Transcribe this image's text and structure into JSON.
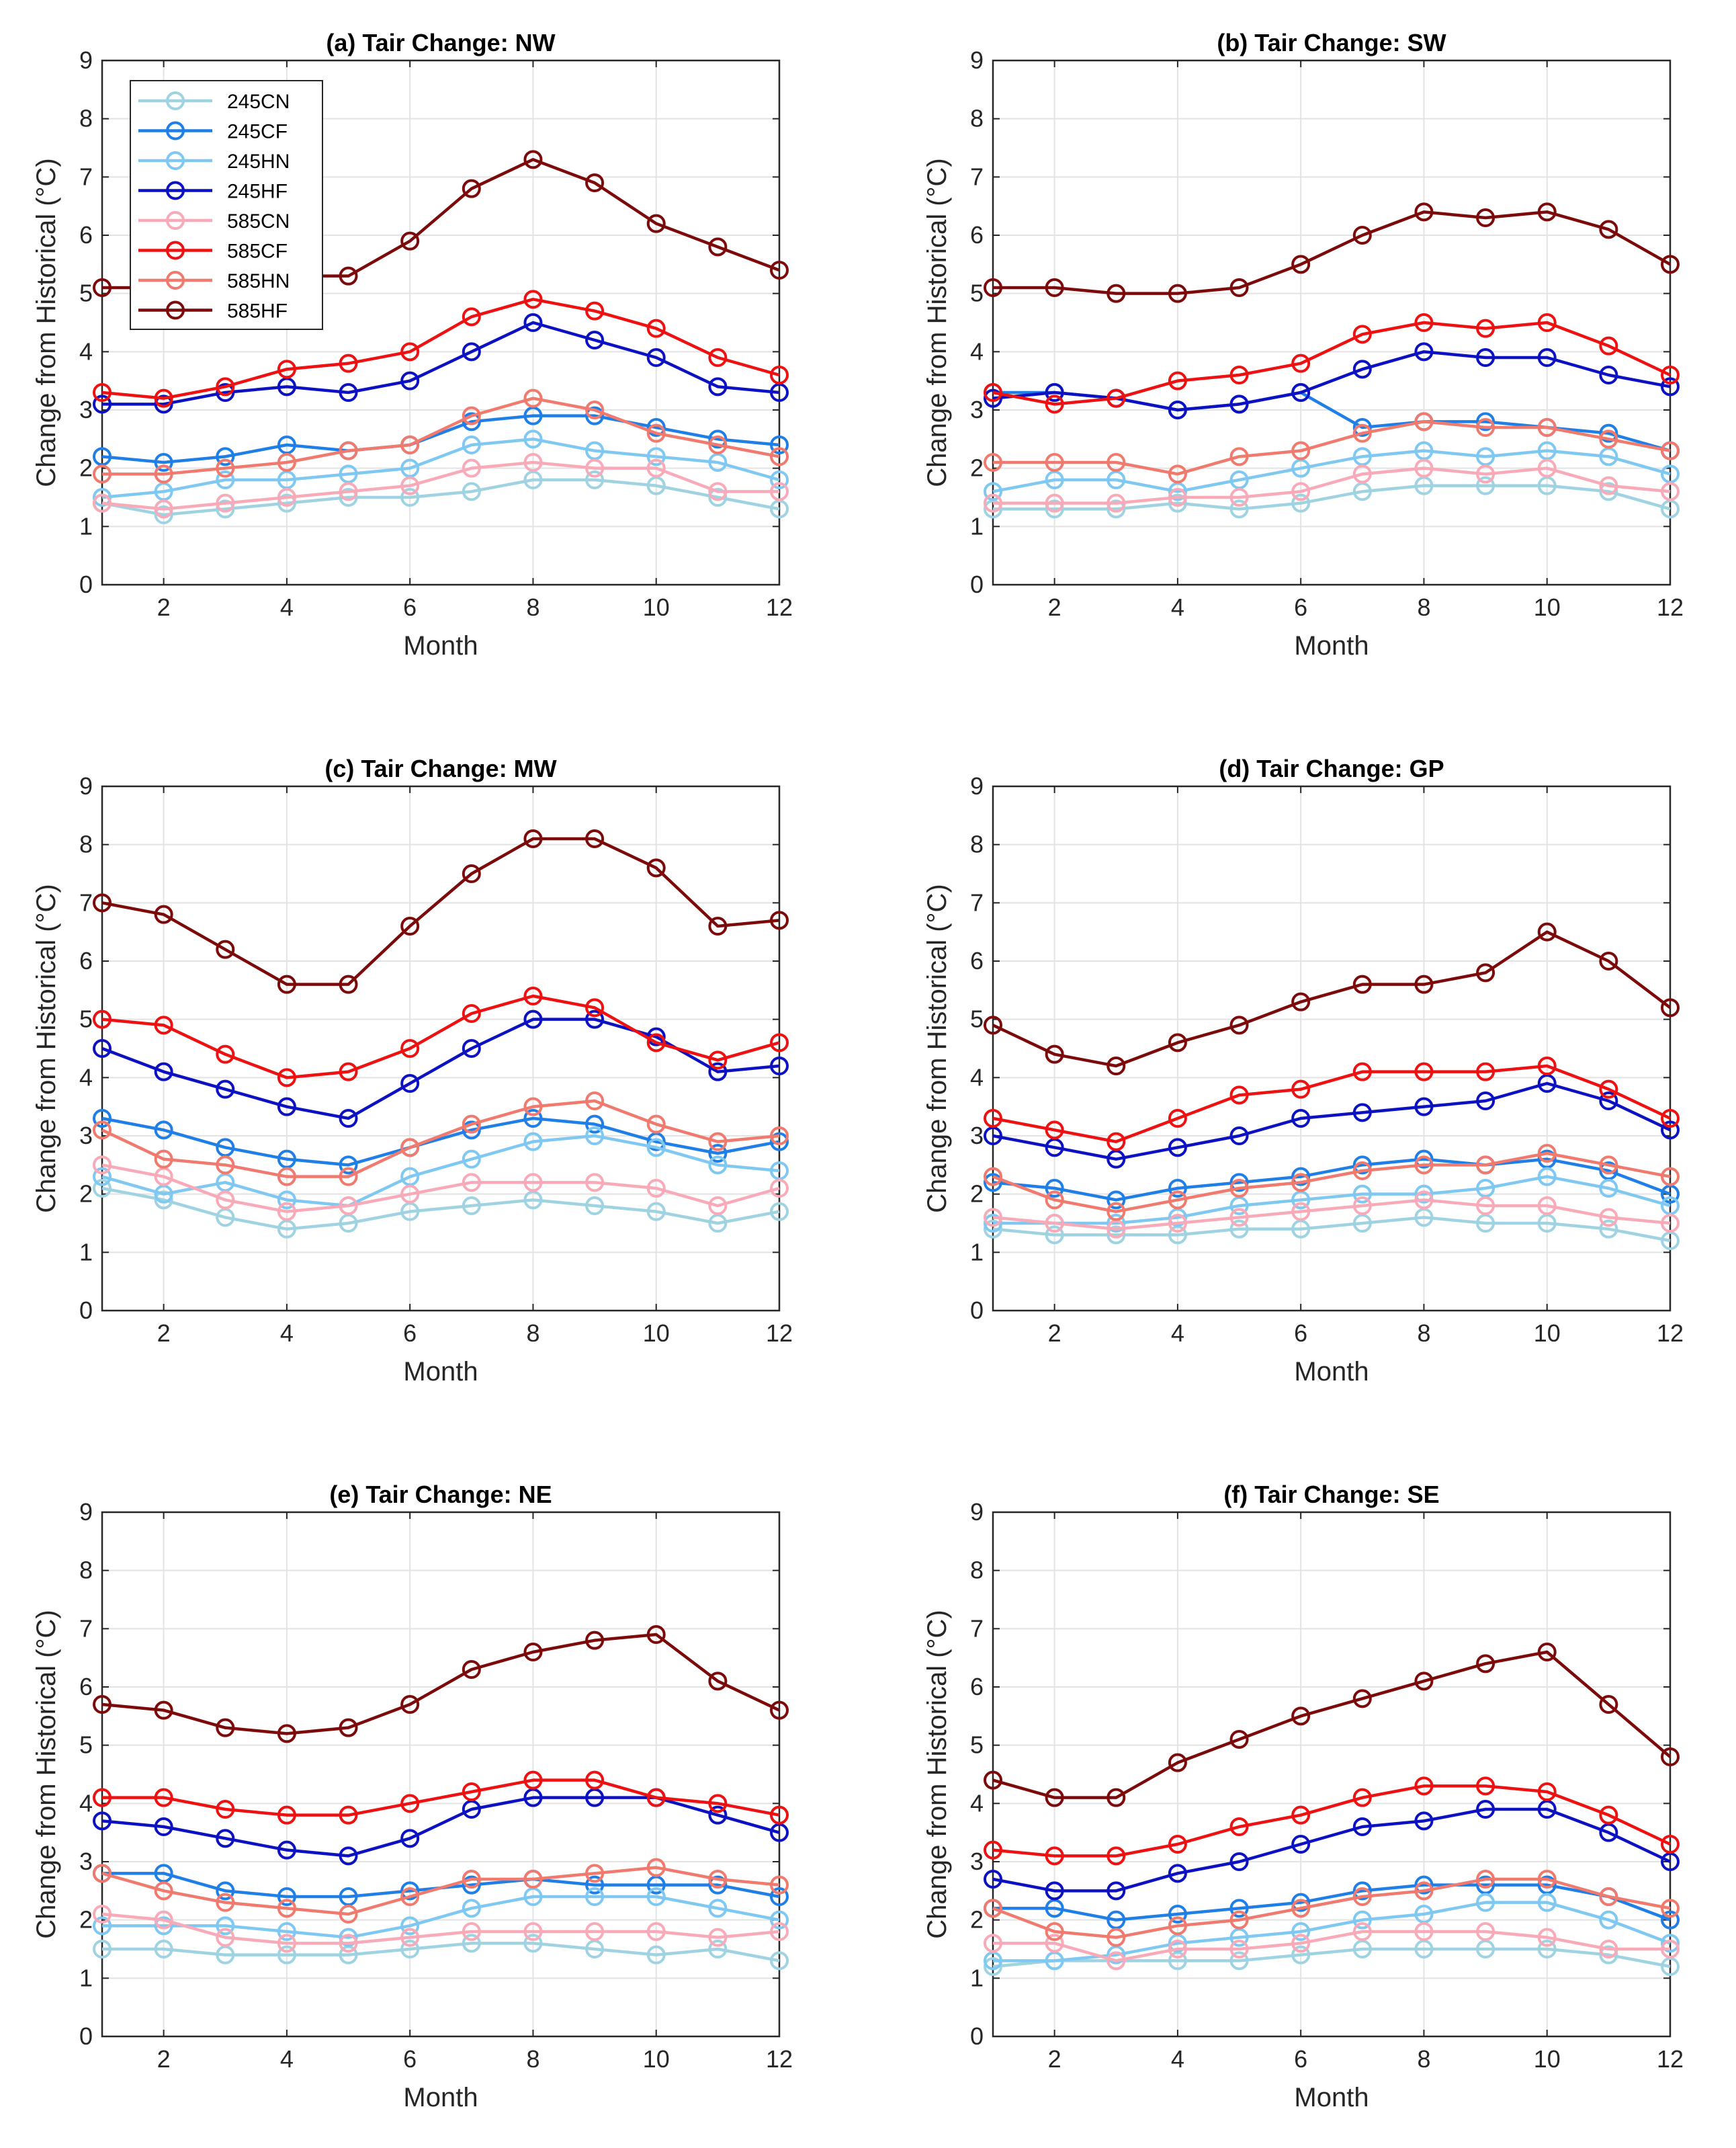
{
  "chart_data": [
    {
      "type": "line",
      "title": "(a) Tair Change: NW",
      "xlabel": "Month",
      "ylabel": "Change from Historical (°C)",
      "xlim": [
        1,
        12
      ],
      "ylim": [
        0,
        9
      ],
      "xticks": [
        2,
        4,
        6,
        8,
        10,
        12
      ],
      "yticks": [
        0,
        1,
        2,
        3,
        4,
        5,
        6,
        7,
        8,
        9
      ],
      "grid": true,
      "legend": "top-left",
      "x": [
        1,
        2,
        3,
        4,
        5,
        6,
        7,
        8,
        9,
        10,
        11,
        12
      ],
      "series": [
        {
          "name": "245CN",
          "color": "#9fd3e2",
          "values": [
            1.4,
            1.2,
            1.3,
            1.4,
            1.5,
            1.5,
            1.6,
            1.8,
            1.8,
            1.7,
            1.5,
            1.3
          ]
        },
        {
          "name": "245CF",
          "color": "#1f7fe6",
          "values": [
            2.2,
            2.1,
            2.2,
            2.4,
            2.3,
            2.4,
            2.8,
            2.9,
            2.9,
            2.7,
            2.5,
            2.4
          ]
        },
        {
          "name": "245HN",
          "color": "#7ec8f2",
          "values": [
            1.5,
            1.6,
            1.8,
            1.8,
            1.9,
            2.0,
            2.4,
            2.5,
            2.3,
            2.2,
            2.1,
            1.8
          ]
        },
        {
          "name": "245HF",
          "color": "#0c12c2",
          "values": [
            3.1,
            3.1,
            3.3,
            3.4,
            3.3,
            3.5,
            4.0,
            4.5,
            4.2,
            3.9,
            3.4,
            3.3
          ]
        },
        {
          "name": "585CN",
          "color": "#f8aab8",
          "values": [
            1.4,
            1.3,
            1.4,
            1.5,
            1.6,
            1.7,
            2.0,
            2.1,
            2.0,
            2.0,
            1.6,
            1.6
          ]
        },
        {
          "name": "585CF",
          "color": "#ee1111",
          "values": [
            3.3,
            3.2,
            3.4,
            3.7,
            3.8,
            4.0,
            4.6,
            4.9,
            4.7,
            4.4,
            3.9,
            3.6
          ]
        },
        {
          "name": "585HN",
          "color": "#f07a6e",
          "values": [
            1.9,
            1.9,
            2.0,
            2.1,
            2.3,
            2.4,
            2.9,
            3.2,
            3.0,
            2.6,
            2.4,
            2.2
          ]
        },
        {
          "name": "585HF",
          "color": "#7c0a0a",
          "values": [
            5.1,
            5.1,
            5.2,
            5.3,
            5.3,
            5.9,
            6.8,
            7.3,
            6.9,
            6.2,
            5.8,
            5.4
          ]
        }
      ]
    },
    {
      "type": "line",
      "title": "(b) Tair Change: SW",
      "xlabel": "Month",
      "ylabel": "Change from Historical (°C)",
      "xlim": [
        1,
        12
      ],
      "ylim": [
        0,
        9
      ],
      "xticks": [
        2,
        4,
        6,
        8,
        10,
        12
      ],
      "yticks": [
        0,
        1,
        2,
        3,
        4,
        5,
        6,
        7,
        8,
        9
      ],
      "grid": true,
      "x": [
        1,
        2,
        3,
        4,
        5,
        6,
        7,
        8,
        9,
        10,
        11,
        12
      ],
      "series": [
        {
          "color": "#9fd3e2",
          "values": [
            1.3,
            1.3,
            1.3,
            1.4,
            1.3,
            1.4,
            1.6,
            1.7,
            1.7,
            1.7,
            1.6,
            1.3
          ]
        },
        {
          "color": "#1f7fe6",
          "values": [
            3.3,
            3.3,
            3.2,
            3.0,
            3.1,
            3.3,
            2.7,
            2.8,
            2.8,
            2.7,
            2.6,
            2.3
          ]
        },
        {
          "color": "#7ec8f2",
          "values": [
            1.6,
            1.8,
            1.8,
            1.6,
            1.8,
            2.0,
            2.2,
            2.3,
            2.2,
            2.3,
            2.2,
            1.9
          ]
        },
        {
          "color": "#0c12c2",
          "values": [
            3.2,
            3.3,
            3.2,
            3.0,
            3.1,
            3.3,
            3.7,
            4.0,
            3.9,
            3.9,
            3.6,
            3.4
          ]
        },
        {
          "color": "#f8aab8",
          "values": [
            1.4,
            1.4,
            1.4,
            1.5,
            1.5,
            1.6,
            1.9,
            2.0,
            1.9,
            2.0,
            1.7,
            1.6
          ]
        },
        {
          "color": "#ee1111",
          "values": [
            3.3,
            3.1,
            3.2,
            3.5,
            3.6,
            3.8,
            4.3,
            4.5,
            4.4,
            4.5,
            4.1,
            3.6
          ]
        },
        {
          "color": "#f07a6e",
          "values": [
            2.1,
            2.1,
            2.1,
            1.9,
            2.2,
            2.3,
            2.6,
            2.8,
            2.7,
            2.7,
            2.5,
            2.3
          ]
        },
        {
          "color": "#7c0a0a",
          "values": [
            5.1,
            5.1,
            5.0,
            5.0,
            5.1,
            5.5,
            6.0,
            6.4,
            6.3,
            6.4,
            6.1,
            5.5
          ]
        }
      ]
    },
    {
      "type": "line",
      "title": "(c) Tair Change: MW",
      "xlabel": "Month",
      "ylabel": "Change from Historical (°C)",
      "xlim": [
        1,
        12
      ],
      "ylim": [
        0,
        9
      ],
      "xticks": [
        2,
        4,
        6,
        8,
        10,
        12
      ],
      "yticks": [
        0,
        1,
        2,
        3,
        4,
        5,
        6,
        7,
        8,
        9
      ],
      "grid": true,
      "x": [
        1,
        2,
        3,
        4,
        5,
        6,
        7,
        8,
        9,
        10,
        11,
        12
      ],
      "series": [
        {
          "color": "#9fd3e2",
          "values": [
            2.1,
            1.9,
            1.6,
            1.4,
            1.5,
            1.7,
            1.8,
            1.9,
            1.8,
            1.7,
            1.5,
            1.7
          ]
        },
        {
          "color": "#1f7fe6",
          "values": [
            3.3,
            3.1,
            2.8,
            2.6,
            2.5,
            2.8,
            3.1,
            3.3,
            3.2,
            2.9,
            2.7,
            2.9
          ]
        },
        {
          "color": "#7ec8f2",
          "values": [
            2.3,
            2.0,
            2.2,
            1.9,
            1.8,
            2.3,
            2.6,
            2.9,
            3.0,
            2.8,
            2.5,
            2.4
          ]
        },
        {
          "color": "#0c12c2",
          "values": [
            4.5,
            4.1,
            3.8,
            3.5,
            3.3,
            3.9,
            4.5,
            5.0,
            5.0,
            4.7,
            4.1,
            4.2
          ]
        },
        {
          "color": "#f8aab8",
          "values": [
            2.5,
            2.3,
            1.9,
            1.7,
            1.8,
            2.0,
            2.2,
            2.2,
            2.2,
            2.1,
            1.8,
            2.1
          ]
        },
        {
          "color": "#ee1111",
          "values": [
            5.0,
            4.9,
            4.4,
            4.0,
            4.1,
            4.5,
            5.1,
            5.4,
            5.2,
            4.6,
            4.3,
            4.6
          ]
        },
        {
          "color": "#f07a6e",
          "values": [
            3.1,
            2.6,
            2.5,
            2.3,
            2.3,
            2.8,
            3.2,
            3.5,
            3.6,
            3.2,
            2.9,
            3.0
          ]
        },
        {
          "color": "#7c0a0a",
          "values": [
            7.0,
            6.8,
            6.2,
            5.6,
            5.6,
            6.6,
            7.5,
            8.1,
            8.1,
            7.6,
            6.6,
            6.7
          ]
        }
      ]
    },
    {
      "type": "line",
      "title": "(d) Tair Change: GP",
      "xlabel": "Month",
      "ylabel": "Change from Historical (°C)",
      "xlim": [
        1,
        12
      ],
      "ylim": [
        0,
        9
      ],
      "xticks": [
        2,
        4,
        6,
        8,
        10,
        12
      ],
      "yticks": [
        0,
        1,
        2,
        3,
        4,
        5,
        6,
        7,
        8,
        9
      ],
      "grid": true,
      "x": [
        1,
        2,
        3,
        4,
        5,
        6,
        7,
        8,
        9,
        10,
        11,
        12
      ],
      "series": [
        {
          "color": "#9fd3e2",
          "values": [
            1.4,
            1.3,
            1.3,
            1.3,
            1.4,
            1.4,
            1.5,
            1.6,
            1.5,
            1.5,
            1.4,
            1.2
          ]
        },
        {
          "color": "#1f7fe6",
          "values": [
            2.2,
            2.1,
            1.9,
            2.1,
            2.2,
            2.3,
            2.5,
            2.6,
            2.5,
            2.6,
            2.4,
            2.0
          ]
        },
        {
          "color": "#7ec8f2",
          "values": [
            1.5,
            1.5,
            1.5,
            1.6,
            1.8,
            1.9,
            2.0,
            2.0,
            2.1,
            2.3,
            2.1,
            1.8
          ]
        },
        {
          "color": "#0c12c2",
          "values": [
            3.0,
            2.8,
            2.6,
            2.8,
            3.0,
            3.3,
            3.4,
            3.5,
            3.6,
            3.9,
            3.6,
            3.1
          ]
        },
        {
          "color": "#f8aab8",
          "values": [
            1.6,
            1.5,
            1.4,
            1.5,
            1.6,
            1.7,
            1.8,
            1.9,
            1.8,
            1.8,
            1.6,
            1.5
          ]
        },
        {
          "color": "#ee1111",
          "values": [
            3.3,
            3.1,
            2.9,
            3.3,
            3.7,
            3.8,
            4.1,
            4.1,
            4.1,
            4.2,
            3.8,
            3.3
          ]
        },
        {
          "color": "#f07a6e",
          "values": [
            2.3,
            1.9,
            1.7,
            1.9,
            2.1,
            2.2,
            2.4,
            2.5,
            2.5,
            2.7,
            2.5,
            2.3
          ]
        },
        {
          "color": "#7c0a0a",
          "values": [
            4.9,
            4.4,
            4.2,
            4.6,
            4.9,
            5.3,
            5.6,
            5.6,
            5.8,
            6.5,
            6.0,
            5.2
          ]
        }
      ]
    },
    {
      "type": "line",
      "title": "(e) Tair Change: NE",
      "xlabel": "Month",
      "ylabel": "Change from Historical (°C)",
      "xlim": [
        1,
        12
      ],
      "ylim": [
        0,
        9
      ],
      "xticks": [
        2,
        4,
        6,
        8,
        10,
        12
      ],
      "yticks": [
        0,
        1,
        2,
        3,
        4,
        5,
        6,
        7,
        8,
        9
      ],
      "grid": true,
      "x": [
        1,
        2,
        3,
        4,
        5,
        6,
        7,
        8,
        9,
        10,
        11,
        12
      ],
      "series": [
        {
          "color": "#9fd3e2",
          "values": [
            1.5,
            1.5,
            1.4,
            1.4,
            1.4,
            1.5,
            1.6,
            1.6,
            1.5,
            1.4,
            1.5,
            1.3
          ]
        },
        {
          "color": "#1f7fe6",
          "values": [
            2.8,
            2.8,
            2.5,
            2.4,
            2.4,
            2.5,
            2.6,
            2.7,
            2.6,
            2.6,
            2.6,
            2.4
          ]
        },
        {
          "color": "#7ec8f2",
          "values": [
            1.9,
            1.9,
            1.9,
            1.8,
            1.7,
            1.9,
            2.2,
            2.4,
            2.4,
            2.4,
            2.2,
            2.0
          ]
        },
        {
          "color": "#0c12c2",
          "values": [
            3.7,
            3.6,
            3.4,
            3.2,
            3.1,
            3.4,
            3.9,
            4.1,
            4.1,
            4.1,
            3.8,
            3.5
          ]
        },
        {
          "color": "#f8aab8",
          "values": [
            2.1,
            2.0,
            1.7,
            1.6,
            1.6,
            1.7,
            1.8,
            1.8,
            1.8,
            1.8,
            1.7,
            1.8
          ]
        },
        {
          "color": "#ee1111",
          "values": [
            4.1,
            4.1,
            3.9,
            3.8,
            3.8,
            4.0,
            4.2,
            4.4,
            4.4,
            4.1,
            4.0,
            3.8
          ]
        },
        {
          "color": "#f07a6e",
          "values": [
            2.8,
            2.5,
            2.3,
            2.2,
            2.1,
            2.4,
            2.7,
            2.7,
            2.8,
            2.9,
            2.7,
            2.6
          ]
        },
        {
          "color": "#7c0a0a",
          "values": [
            5.7,
            5.6,
            5.3,
            5.2,
            5.3,
            5.7,
            6.3,
            6.6,
            6.8,
            6.9,
            6.1,
            5.6
          ]
        }
      ]
    },
    {
      "type": "line",
      "title": "(f) Tair Change: SE",
      "xlabel": "Month",
      "ylabel": "Change from Historical (°C)",
      "xlim": [
        1,
        12
      ],
      "ylim": [
        0,
        9
      ],
      "xticks": [
        2,
        4,
        6,
        8,
        10,
        12
      ],
      "yticks": [
        0,
        1,
        2,
        3,
        4,
        5,
        6,
        7,
        8,
        9
      ],
      "grid": true,
      "x": [
        1,
        2,
        3,
        4,
        5,
        6,
        7,
        8,
        9,
        10,
        11,
        12
      ],
      "series": [
        {
          "color": "#9fd3e2",
          "values": [
            1.2,
            1.3,
            1.3,
            1.3,
            1.3,
            1.4,
            1.5,
            1.5,
            1.5,
            1.5,
            1.4,
            1.2
          ]
        },
        {
          "color": "#1f7fe6",
          "values": [
            2.2,
            2.2,
            2.0,
            2.1,
            2.2,
            2.3,
            2.5,
            2.6,
            2.6,
            2.6,
            2.4,
            2.0
          ]
        },
        {
          "color": "#7ec8f2",
          "values": [
            1.3,
            1.3,
            1.4,
            1.6,
            1.7,
            1.8,
            2.0,
            2.1,
            2.3,
            2.3,
            2.0,
            1.6
          ]
        },
        {
          "color": "#0c12c2",
          "values": [
            2.7,
            2.5,
            2.5,
            2.8,
            3.0,
            3.3,
            3.6,
            3.7,
            3.9,
            3.9,
            3.5,
            3.0
          ]
        },
        {
          "color": "#f8aab8",
          "values": [
            1.6,
            1.6,
            1.3,
            1.5,
            1.5,
            1.6,
            1.8,
            1.8,
            1.8,
            1.7,
            1.5,
            1.5
          ]
        },
        {
          "color": "#ee1111",
          "values": [
            3.2,
            3.1,
            3.1,
            3.3,
            3.6,
            3.8,
            4.1,
            4.3,
            4.3,
            4.2,
            3.8,
            3.3
          ]
        },
        {
          "color": "#f07a6e",
          "values": [
            2.2,
            1.8,
            1.7,
            1.9,
            2.0,
            2.2,
            2.4,
            2.5,
            2.7,
            2.7,
            2.4,
            2.2
          ]
        },
        {
          "color": "#7c0a0a",
          "values": [
            4.4,
            4.1,
            4.1,
            4.7,
            5.1,
            5.5,
            5.8,
            6.1,
            6.4,
            6.6,
            5.7,
            4.8
          ]
        }
      ]
    }
  ]
}
